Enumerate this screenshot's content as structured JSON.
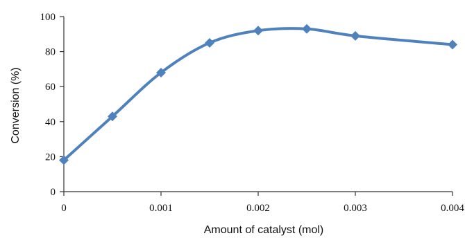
{
  "chart_data": {
    "type": "line",
    "xlabel": "Amount of catalyst (mol)",
    "ylabel": "Conversion (%)",
    "xlim": [
      0,
      0.004
    ],
    "ylim": [
      0,
      100
    ],
    "x_ticks": [
      "0",
      "0.001",
      "0.002",
      "0.003",
      "0.004"
    ],
    "y_ticks": [
      "0",
      "20",
      "40",
      "60",
      "80",
      "100"
    ],
    "grid": false,
    "legend": "none",
    "smooth": true,
    "series": [
      {
        "x": [
          0,
          0.0005,
          0.001,
          0.0015,
          0.002,
          0.0025,
          0.003,
          0.004
        ],
        "y": [
          18,
          43,
          68,
          85,
          92,
          93,
          89,
          84
        ],
        "color": "#4f81bd",
        "marker": "diamond"
      }
    ]
  }
}
